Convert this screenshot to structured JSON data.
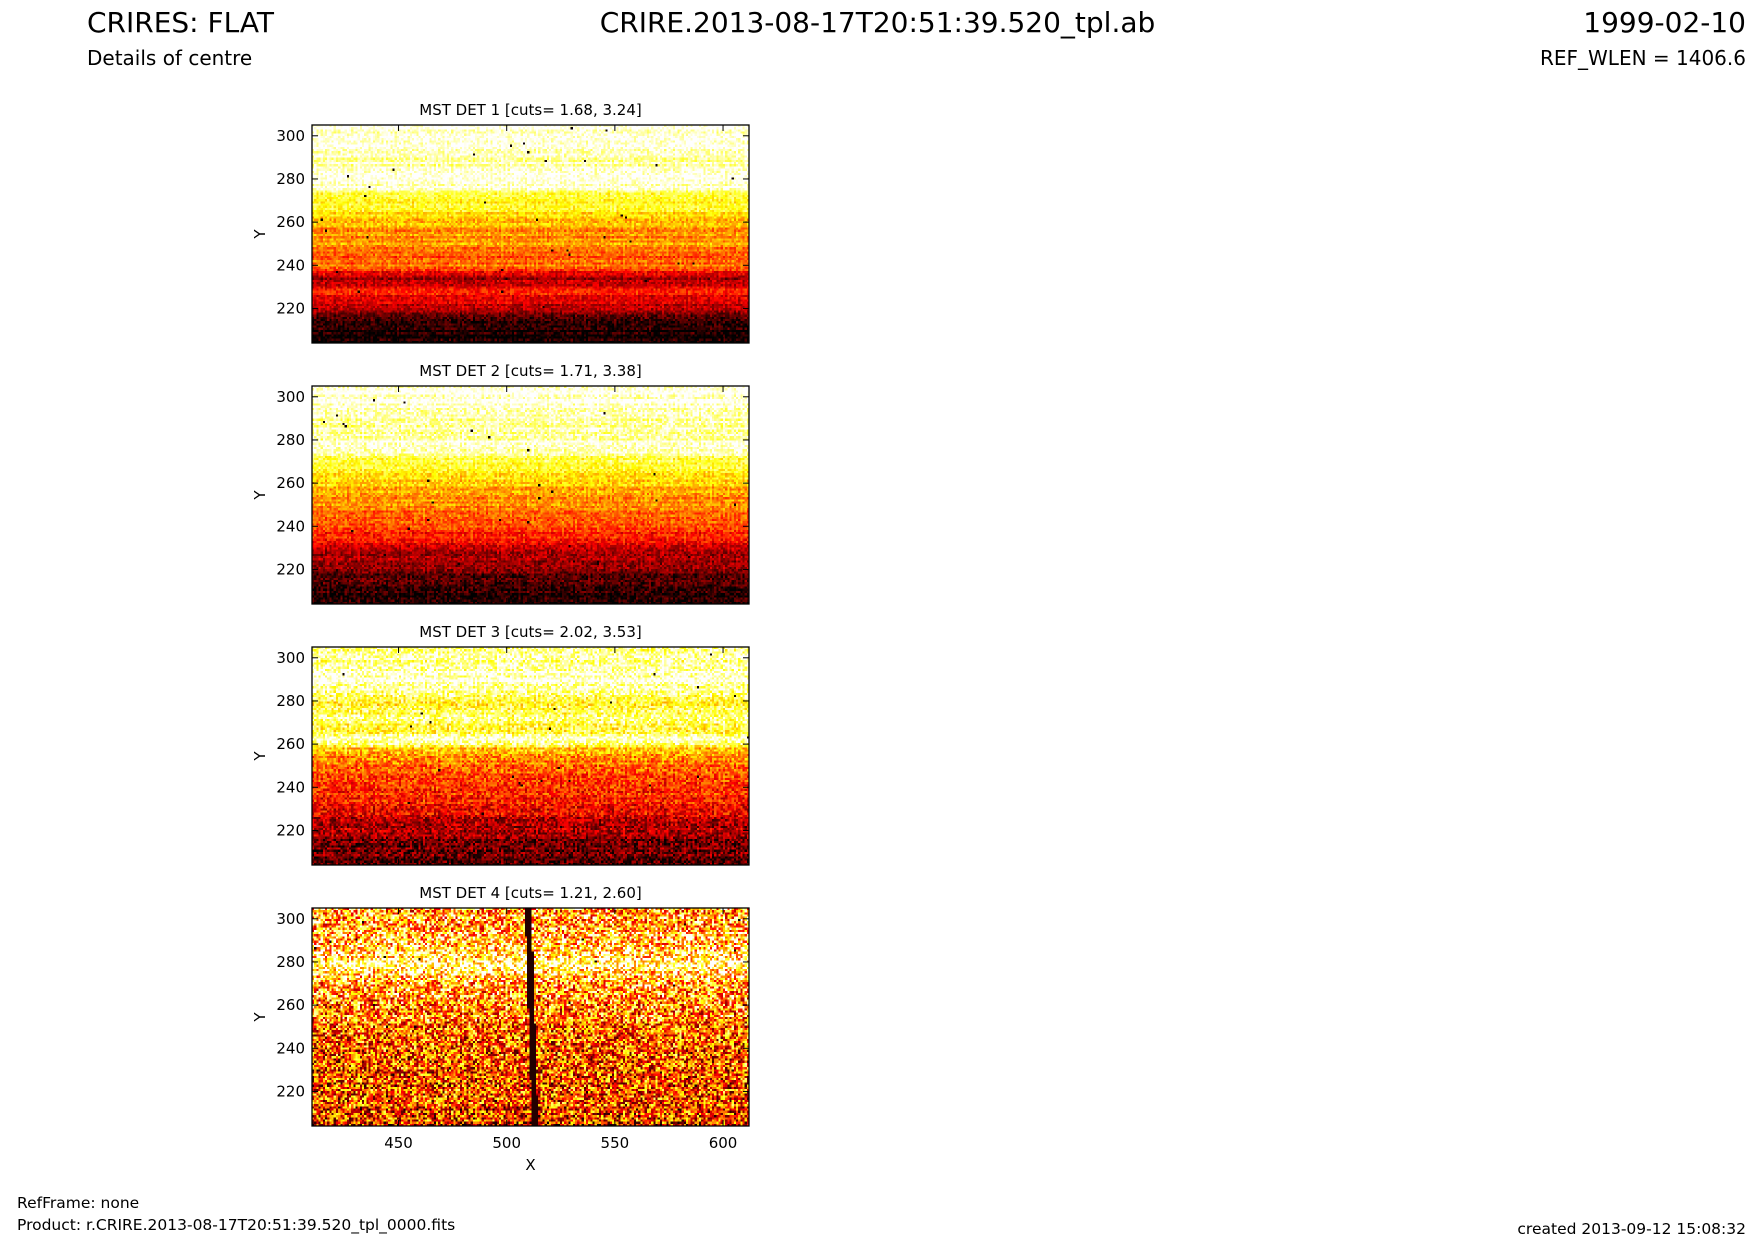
{
  "header": {
    "title_left": "CRIRES: FLAT",
    "subtitle_left": "Details of centre",
    "title_center": "CRIRE.2013-08-17T20:51:39.520_tpl.ab",
    "title_right": "1999-02-10",
    "subtitle_right": "REF_WLEN = 1406.6"
  },
  "footer": {
    "refframe": "RefFrame: none",
    "product": "Product: r.CRIRE.2013-08-17T20:51:39.520_tpl_0000.fits",
    "created": "created 2013-09-12 15:08:32"
  },
  "chart_data": [
    {
      "type": "heatmap",
      "title": "MST DET 1 [cuts= 1.68, 3.24]",
      "cuts": [
        1.68,
        3.24
      ],
      "colormap": "hot",
      "xlabel": "",
      "ylabel": "Y",
      "xlim": [
        410,
        612
      ],
      "ylim": [
        204,
        305
      ],
      "xticks": [
        450,
        500,
        550,
        600
      ],
      "yticks": [
        220,
        240,
        260,
        280,
        300
      ],
      "xticklabels_shown": false,
      "profile_y": [
        205,
        212,
        220,
        228,
        234,
        240,
        244,
        250,
        256,
        262,
        268,
        274,
        276,
        282,
        290,
        298,
        305
      ],
      "profile_level": [
        0.03,
        0.06,
        0.28,
        0.4,
        0.22,
        0.55,
        0.5,
        0.62,
        0.58,
        0.72,
        0.78,
        0.84,
        1.0,
        0.98,
        0.93,
        1.0,
        1.0
      ]
    },
    {
      "type": "heatmap",
      "title": "MST DET 2 [cuts= 1.71, 3.38]",
      "cuts": [
        1.71,
        3.38
      ],
      "colormap": "hot",
      "xlabel": "",
      "ylabel": "Y",
      "xlim": [
        410,
        612
      ],
      "ylim": [
        204,
        305
      ],
      "xticks": [
        450,
        500,
        550,
        600
      ],
      "yticks": [
        220,
        240,
        260,
        280,
        300
      ],
      "xticklabels_shown": false,
      "profile_y": [
        205,
        212,
        220,
        228,
        236,
        242,
        248,
        254,
        260,
        266,
        272,
        276,
        280,
        288,
        296,
        305
      ],
      "profile_level": [
        0.04,
        0.07,
        0.2,
        0.26,
        0.42,
        0.52,
        0.56,
        0.6,
        0.7,
        0.76,
        0.82,
        1.0,
        0.96,
        0.92,
        1.0,
        1.0
      ]
    },
    {
      "type": "heatmap",
      "title": "MST DET 3 [cuts= 2.02, 3.53]",
      "cuts": [
        2.02,
        3.53
      ],
      "colormap": "hot",
      "xlabel": "",
      "ylabel": "Y",
      "xlim": [
        410,
        612
      ],
      "ylim": [
        204,
        305
      ],
      "xticks": [
        450,
        500,
        550,
        600
      ],
      "yticks": [
        220,
        240,
        260,
        280,
        300
      ],
      "xticklabels_shown": false,
      "profile_y": [
        205,
        212,
        220,
        228,
        236,
        244,
        252,
        258,
        262,
        266,
        272,
        278,
        284,
        290,
        296,
        305
      ],
      "profile_level": [
        0.1,
        0.18,
        0.24,
        0.34,
        0.42,
        0.48,
        0.58,
        0.7,
        0.98,
        0.8,
        0.9,
        0.78,
        0.92,
        1.0,
        0.94,
        0.9
      ]
    },
    {
      "type": "heatmap",
      "title": "MST DET 4 [cuts= 1.21, 2.60]",
      "cuts": [
        1.21,
        2.6
      ],
      "colormap": "hot",
      "xlabel": "X",
      "ylabel": "Y",
      "xlim": [
        410,
        612
      ],
      "ylim": [
        204,
        305
      ],
      "xticks": [
        450,
        500,
        550,
        600
      ],
      "yticks": [
        220,
        240,
        260,
        280,
        300
      ],
      "xticklabels_shown": true,
      "profile_y": [
        205,
        215,
        225,
        235,
        245,
        255,
        265,
        272,
        278,
        284,
        292,
        305
      ],
      "profile_level": [
        0.4,
        0.46,
        0.48,
        0.5,
        0.55,
        0.6,
        0.62,
        0.72,
        0.95,
        0.78,
        0.7,
        0.66
      ],
      "dark_column_x": 513
    }
  ]
}
